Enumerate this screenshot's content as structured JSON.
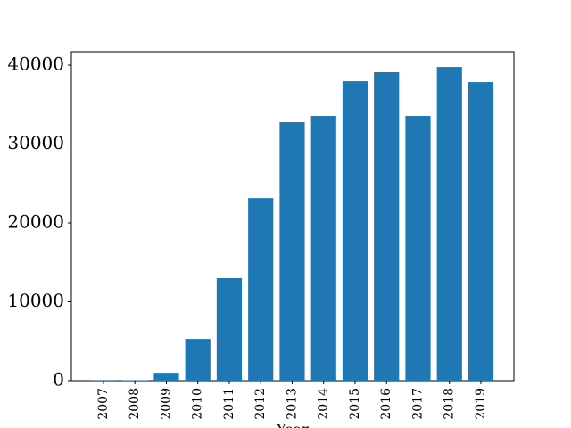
{
  "chart_data": {
    "type": "bar",
    "x_label": "Year",
    "categories": [
      "2007",
      "2008",
      "2009",
      "2010",
      "2011",
      "2012",
      "2013",
      "2014",
      "2015",
      "2016",
      "2017",
      "2018",
      "2019"
    ],
    "values": [
      30,
      60,
      1000,
      5300,
      13000,
      23150,
      32770,
      33560,
      37960,
      39100,
      33560,
      39770,
      37850
    ],
    "color": "#1f77b4",
    "ylim": [
      0,
      41700
    ],
    "yticks": [
      0,
      10000,
      20000,
      30000,
      40000
    ],
    "grid": false
  }
}
